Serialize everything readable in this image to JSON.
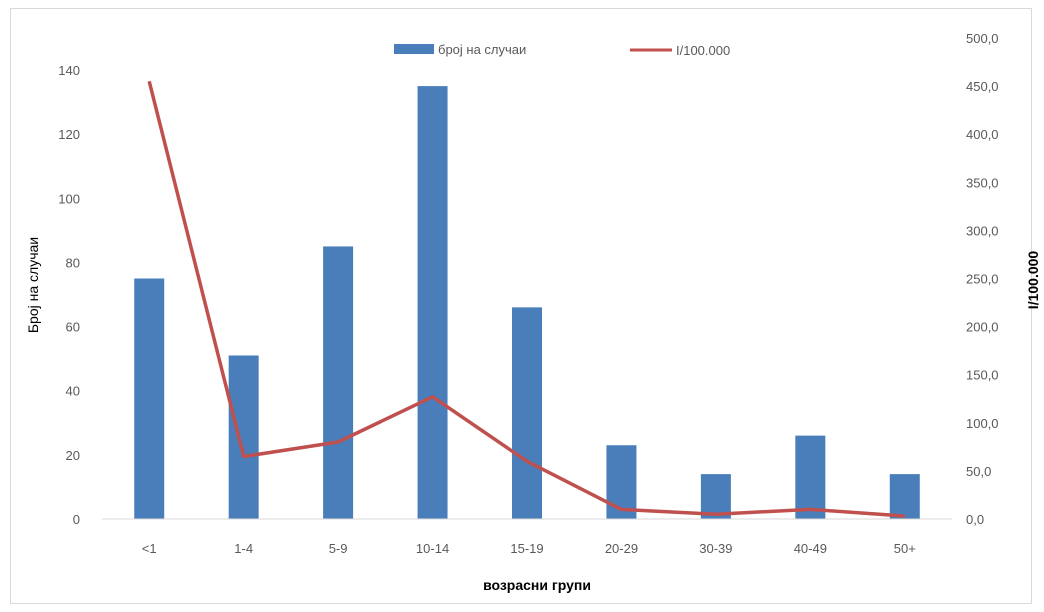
{
  "chart_data": {
    "type": "bar+line",
    "categories": [
      "<1",
      "1-4",
      "5-9",
      "10-14",
      "15-19",
      "20-29",
      "30-39",
      "40-49",
      "50+"
    ],
    "series": [
      {
        "name": "број на случаи",
        "type": "bar",
        "axis": "left",
        "color": "#4a7ebb",
        "values": [
          75,
          51,
          85,
          135,
          66,
          23,
          14,
          26,
          14
        ]
      },
      {
        "name": "I/100.000",
        "type": "line",
        "axis": "right",
        "color": "#c0504d",
        "values": [
          455,
          65,
          80,
          127,
          60,
          10,
          5,
          10,
          3
        ]
      }
    ],
    "xlabel": "возрасни групи",
    "ylabel": "Број на случаи",
    "y2label": "I/100.000",
    "ylim": [
      0,
      150
    ],
    "y_ticks": [
      "0",
      "20",
      "40",
      "60",
      "80",
      "100",
      "120",
      "140"
    ],
    "y2lim": [
      0,
      500
    ],
    "y2_ticks": [
      "0,0",
      "50,0",
      "100,0",
      "150,0",
      "200,0",
      "250,0",
      "300,0",
      "350,0",
      "400,0",
      "450,0",
      "500,0"
    ],
    "legend_position": "top",
    "grid": false
  }
}
